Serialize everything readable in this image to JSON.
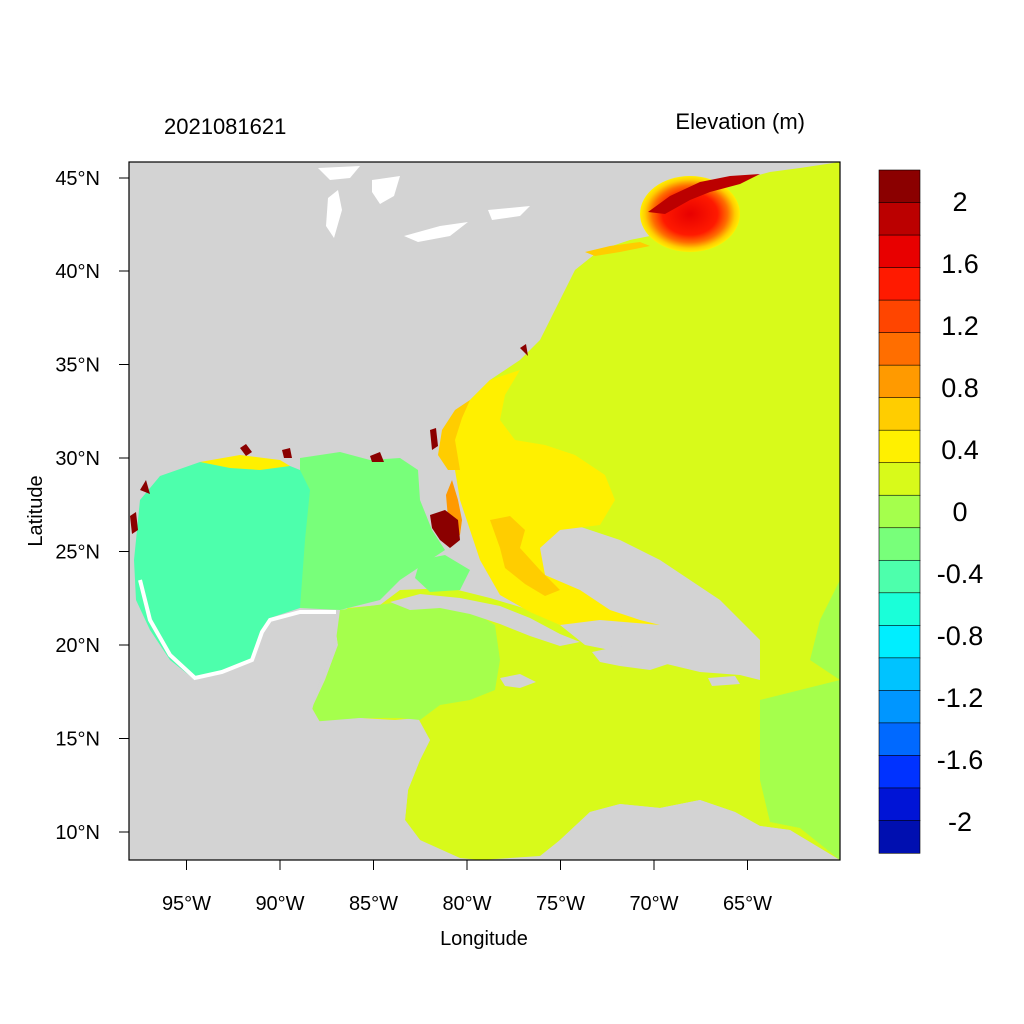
{
  "header": {
    "timestamp": "2021081621",
    "field_label": "Elevation (m)"
  },
  "axes": {
    "xlabel": "Longitude",
    "ylabel": "Latitude",
    "x_ticks": [
      "95°W",
      "90°W",
      "85°W",
      "80°W",
      "75°W",
      "70°W",
      "65°W"
    ],
    "y_ticks": [
      "45°N",
      "40°N",
      "35°N",
      "30°N",
      "25°N",
      "20°N",
      "15°N",
      "10°N"
    ]
  },
  "map_extent": {
    "lon_min": -98,
    "lon_max": -60,
    "lat_min": 8.5,
    "lat_max": 46
  },
  "colorbar": {
    "labels": [
      "2",
      "1.6",
      "1.2",
      "0.8",
      "0.4",
      "0",
      "-0.4",
      "-0.8",
      "-1.2",
      "-1.6",
      "-2"
    ],
    "colors_top_to_bottom": [
      "#8b0000",
      "#bb0000",
      "#e80000",
      "#ff1a00",
      "#ff4500",
      "#ff6e00",
      "#ff9a00",
      "#ffcd00",
      "#fff000",
      "#d8fa1a",
      "#a5ff4c",
      "#78ff7a",
      "#4dffac",
      "#1affd9",
      "#00eeff",
      "#00c3ff",
      "#0096ff",
      "#0069ff",
      "#0032ff",
      "#0014d6",
      "#000fb0"
    ]
  },
  "colors": {
    "land": "#d3d3d3",
    "ocean_dominant": "#d8fa1a"
  }
}
